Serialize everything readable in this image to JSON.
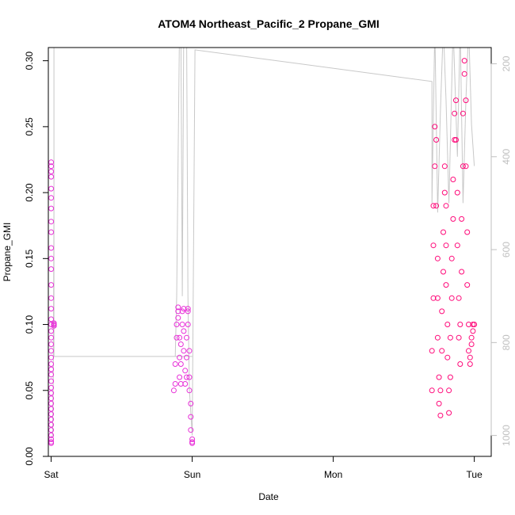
{
  "chart_data": {
    "type": "scatter",
    "title": "ATOM4 Northeast_Pacific_2 Propane_GMI",
    "xlabel": "Date",
    "ylabel": "Propane_GMI",
    "xlim": [
      -0.02,
      3.12
    ],
    "ylim": [
      0.0,
      0.31
    ],
    "x_ticks": [
      {
        "value": 0,
        "label": "Sat"
      },
      {
        "value": 1,
        "label": "Sun"
      },
      {
        "value": 2,
        "label": "Mon"
      },
      {
        "value": 3,
        "label": "Tue"
      }
    ],
    "y_ticks": [
      {
        "value": 0.0,
        "label": "0.00"
      },
      {
        "value": 0.05,
        "label": "0.05"
      },
      {
        "value": 0.1,
        "label": "0.10"
      },
      {
        "value": 0.15,
        "label": "0.15"
      },
      {
        "value": 0.2,
        "label": "0.20"
      },
      {
        "value": 0.25,
        "label": "0.25"
      },
      {
        "value": 0.3,
        "label": "0.30"
      }
    ],
    "y2_reversed": true,
    "y2lim": [
      1045,
      165
    ],
    "y2_ticks": [
      {
        "value": 200,
        "label": "200"
      },
      {
        "value": 400,
        "label": "400"
      },
      {
        "value": 600,
        "label": "600"
      },
      {
        "value": 800,
        "label": "800"
      },
      {
        "value": 1000,
        "label": "1000"
      }
    ],
    "colors": {
      "points_early": "#e830d8",
      "points_late": "#ff0a7a",
      "secondary_line": "#c8c8c8",
      "axis": "#000000",
      "axis_right": "#bfbfbf"
    },
    "series": [
      {
        "role": "altitude",
        "axis": "right",
        "points": [
          [
            0.0,
            1005
          ],
          [
            0.01,
            1000
          ],
          [
            0.015,
            880
          ],
          [
            0.02,
            500
          ],
          [
            0.02,
            350
          ],
          [
            0.02,
            200
          ],
          [
            0.02,
            120
          ],
          [
            0.02,
            830
          ],
          [
            1.0,
            830
          ],
          [
            0.88,
            830
          ],
          [
            0.89,
            700
          ],
          [
            0.9,
            400
          ],
          [
            0.91,
            120
          ],
          [
            0.92,
            120
          ],
          [
            0.93,
            700
          ],
          [
            0.94,
            120
          ],
          [
            0.95,
            120
          ],
          [
            0.96,
            120
          ],
          [
            0.97,
            700
          ],
          [
            0.98,
            900
          ],
          [
            1.0,
            1000
          ],
          [
            1.02,
            170
          ],
          [
            2.7,
            238
          ],
          [
            2.7,
            500
          ],
          [
            2.72,
            120
          ],
          [
            2.74,
            520
          ],
          [
            2.76,
            300
          ],
          [
            2.78,
            120
          ],
          [
            2.8,
            280
          ],
          [
            2.82,
            500
          ],
          [
            2.85,
            120
          ],
          [
            2.88,
            400
          ],
          [
            2.9,
            120
          ],
          [
            2.92,
            500
          ],
          [
            2.94,
            280
          ],
          [
            2.96,
            120
          ],
          [
            2.98,
            330
          ],
          [
            3.0,
            420
          ]
        ]
      },
      {
        "role": "propane",
        "axis": "left",
        "points": [
          [
            0.0,
            0.01
          ],
          [
            0.0,
            0.011
          ],
          [
            0.0,
            0.013
          ],
          [
            0.0,
            0.016
          ],
          [
            0.0,
            0.02
          ],
          [
            0.0,
            0.024
          ],
          [
            0.0,
            0.028
          ],
          [
            0.0,
            0.032
          ],
          [
            0.0,
            0.036
          ],
          [
            0.0,
            0.04
          ],
          [
            0.0,
            0.044
          ],
          [
            0.0,
            0.048
          ],
          [
            0.0,
            0.052
          ],
          [
            0.0,
            0.057
          ],
          [
            0.0,
            0.062
          ],
          [
            0.0,
            0.066
          ],
          [
            0.0,
            0.07
          ],
          [
            0.0,
            0.075
          ],
          [
            0.0,
            0.08
          ],
          [
            0.0,
            0.085
          ],
          [
            0.0,
            0.09
          ],
          [
            0.0,
            0.095
          ],
          [
            0.0,
            0.1
          ],
          [
            0.0,
            0.104
          ],
          [
            0.0,
            0.112
          ],
          [
            0.0,
            0.12
          ],
          [
            0.0,
            0.13
          ],
          [
            0.0,
            0.142
          ],
          [
            0.0,
            0.15
          ],
          [
            0.0,
            0.158
          ],
          [
            0.0,
            0.17
          ],
          [
            0.0,
            0.178
          ],
          [
            0.0,
            0.188
          ],
          [
            0.0,
            0.196
          ],
          [
            0.0,
            0.203
          ],
          [
            0.0,
            0.212
          ],
          [
            0.0,
            0.216
          ],
          [
            0.0,
            0.22
          ],
          [
            0.0,
            0.223
          ],
          [
            0.02,
            0.099
          ],
          [
            0.02,
            0.1
          ],
          [
            0.02,
            0.101
          ],
          [
            0.02,
            0.1
          ],
          [
            0.02,
            0.099
          ],
          [
            0.87,
            0.05
          ],
          [
            0.88,
            0.055
          ],
          [
            0.88,
            0.07
          ],
          [
            0.89,
            0.09
          ],
          [
            0.89,
            0.1
          ],
          [
            0.9,
            0.105
          ],
          [
            0.9,
            0.11
          ],
          [
            0.9,
            0.113
          ],
          [
            0.91,
            0.09
          ],
          [
            0.91,
            0.075
          ],
          [
            0.91,
            0.06
          ],
          [
            0.92,
            0.055
          ],
          [
            0.92,
            0.07
          ],
          [
            0.92,
            0.085
          ],
          [
            0.93,
            0.1
          ],
          [
            0.93,
            0.11
          ],
          [
            0.94,
            0.112
          ],
          [
            0.94,
            0.095
          ],
          [
            0.94,
            0.08
          ],
          [
            0.95,
            0.065
          ],
          [
            0.95,
            0.055
          ],
          [
            0.96,
            0.06
          ],
          [
            0.96,
            0.075
          ],
          [
            0.96,
            0.09
          ],
          [
            0.97,
            0.1
          ],
          [
            0.97,
            0.11
          ],
          [
            0.97,
            0.112
          ],
          [
            0.98,
            0.08
          ],
          [
            0.98,
            0.06
          ],
          [
            0.98,
            0.05
          ],
          [
            0.99,
            0.04
          ],
          [
            0.99,
            0.03
          ],
          [
            0.99,
            0.02
          ],
          [
            1.0,
            0.013
          ],
          [
            1.0,
            0.011
          ],
          [
            1.0,
            0.01
          ],
          [
            2.7,
            0.05
          ],
          [
            2.7,
            0.08
          ],
          [
            2.71,
            0.12
          ],
          [
            2.71,
            0.16
          ],
          [
            2.71,
            0.19
          ],
          [
            2.72,
            0.22
          ],
          [
            2.72,
            0.25
          ],
          [
            2.73,
            0.24
          ],
          [
            2.73,
            0.19
          ],
          [
            2.74,
            0.15
          ],
          [
            2.74,
            0.12
          ],
          [
            2.74,
            0.09
          ],
          [
            2.75,
            0.06
          ],
          [
            2.75,
            0.04
          ],
          [
            2.76,
            0.031
          ],
          [
            2.76,
            0.05
          ],
          [
            2.77,
            0.08
          ],
          [
            2.77,
            0.11
          ],
          [
            2.78,
            0.14
          ],
          [
            2.78,
            0.17
          ],
          [
            2.79,
            0.2
          ],
          [
            2.79,
            0.22
          ],
          [
            2.8,
            0.19
          ],
          [
            2.8,
            0.16
          ],
          [
            2.8,
            0.13
          ],
          [
            2.81,
            0.1
          ],
          [
            2.81,
            0.075
          ],
          [
            2.82,
            0.05
          ],
          [
            2.82,
            0.033
          ],
          [
            2.83,
            0.06
          ],
          [
            2.83,
            0.09
          ],
          [
            2.84,
            0.12
          ],
          [
            2.84,
            0.15
          ],
          [
            2.85,
            0.18
          ],
          [
            2.85,
            0.21
          ],
          [
            2.86,
            0.24
          ],
          [
            2.86,
            0.26
          ],
          [
            2.87,
            0.27
          ],
          [
            2.87,
            0.24
          ],
          [
            2.88,
            0.2
          ],
          [
            2.88,
            0.16
          ],
          [
            2.89,
            0.12
          ],
          [
            2.89,
            0.09
          ],
          [
            2.9,
            0.07
          ],
          [
            2.9,
            0.1
          ],
          [
            2.91,
            0.14
          ],
          [
            2.91,
            0.18
          ],
          [
            2.92,
            0.22
          ],
          [
            2.92,
            0.26
          ],
          [
            2.93,
            0.29
          ],
          [
            2.93,
            0.3
          ],
          [
            2.94,
            0.27
          ],
          [
            2.94,
            0.22
          ],
          [
            2.95,
            0.17
          ],
          [
            2.95,
            0.13
          ],
          [
            2.96,
            0.1
          ],
          [
            2.96,
            0.08
          ],
          [
            2.97,
            0.07
          ],
          [
            2.97,
            0.075
          ],
          [
            2.98,
            0.085
          ],
          [
            2.98,
            0.09
          ],
          [
            2.99,
            0.095
          ],
          [
            2.99,
            0.1
          ],
          [
            3.0,
            0.1
          ]
        ]
      }
    ]
  }
}
